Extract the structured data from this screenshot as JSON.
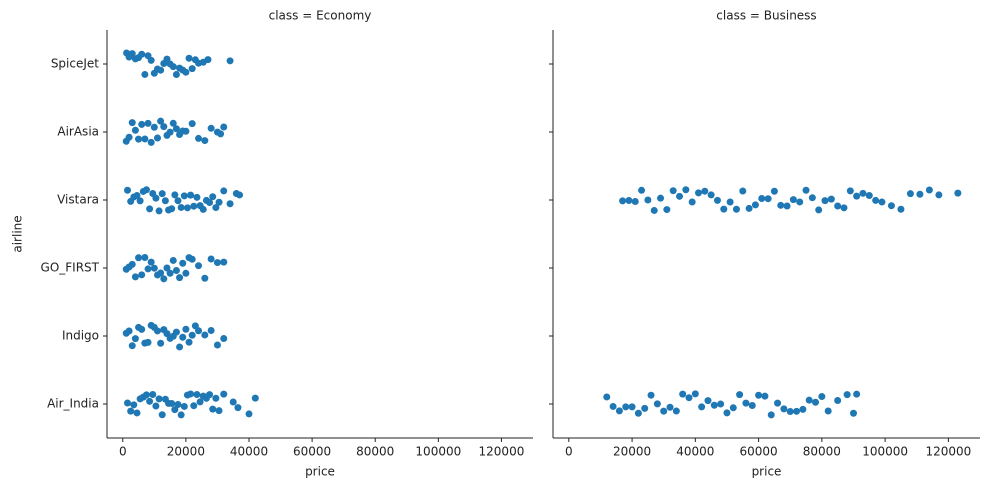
{
  "chart_data": [
    {
      "type": "strip",
      "title": "class = Economy",
      "xlabel": "price",
      "ylabel": "airline",
      "color": "#1f77b4",
      "categories": [
        "SpiceJet",
        "AirAsia",
        "Vistara",
        "GO_FIRST",
        "Indigo",
        "Air_India"
      ],
      "xlim": [
        -5000,
        130000
      ],
      "xticks": [
        0,
        20000,
        40000,
        60000,
        80000,
        100000,
        120000
      ],
      "values": [
        [
          1200,
          2000,
          3000,
          4000,
          5000,
          6000,
          7000,
          8000,
          9000,
          10000,
          11000,
          12000,
          13000,
          14000,
          15000,
          16000,
          17000,
          18000,
          19000,
          20000,
          21000,
          22000,
          23000,
          24000,
          25500,
          27000,
          34000
        ],
        [
          1100,
          2000,
          3000,
          4000,
          5000,
          6000,
          7000,
          8000,
          9000,
          10000,
          11000,
          12000,
          13000,
          14000,
          15000,
          16000,
          17000,
          18000,
          19000,
          20000,
          22000,
          24000,
          26000,
          28000,
          30000,
          31000,
          32000
        ],
        [
          1500,
          2500,
          3500,
          4500,
          5500,
          6500,
          7500,
          8500,
          9500,
          10500,
          11500,
          12500,
          13500,
          14500,
          15500,
          16500,
          17500,
          18500,
          19500,
          20500,
          21500,
          22500,
          23500,
          24500,
          25500,
          26500,
          27500,
          28500,
          29500,
          30500,
          32000,
          34000,
          36000,
          37000
        ],
        [
          1100,
          2000,
          3000,
          4000,
          5000,
          6000,
          7000,
          8000,
          9000,
          10000,
          11000,
          12000,
          13000,
          14000,
          15000,
          16000,
          17000,
          18000,
          19000,
          20000,
          21000,
          22000,
          24000,
          26000,
          28000,
          30000,
          32000
        ],
        [
          1100,
          2000,
          3000,
          4000,
          5000,
          6000,
          7000,
          8000,
          9000,
          10000,
          11000,
          12000,
          13000,
          14000,
          15000,
          16000,
          17000,
          18000,
          19000,
          20000,
          21000,
          22000,
          23000,
          24000,
          26000,
          28000,
          30000,
          32000
        ],
        [
          1500,
          2500,
          3500,
          4500,
          5500,
          6500,
          7500,
          8500,
          9500,
          10500,
          11500,
          12500,
          13500,
          14500,
          15500,
          16500,
          17500,
          18500,
          19500,
          20500,
          21500,
          22500,
          23500,
          24500,
          25500,
          26500,
          27500,
          28500,
          29500,
          30500,
          32000,
          35000,
          36500,
          40000,
          42000
        ]
      ]
    },
    {
      "type": "strip",
      "title": "class = Business",
      "xlabel": "price",
      "color": "#1f77b4",
      "xlim": [
        -5000,
        130000
      ],
      "xticks": [
        0,
        20000,
        40000,
        60000,
        80000,
        100000,
        120000
      ],
      "values": [
        [],
        [],
        [
          17000,
          19000,
          21000,
          23000,
          25000,
          27000,
          29000,
          31000,
          33000,
          35000,
          37000,
          39000,
          41000,
          43000,
          45000,
          47000,
          49000,
          51000,
          53000,
          55000,
          57000,
          59000,
          61000,
          63000,
          65000,
          67000,
          69000,
          71000,
          73000,
          75000,
          77000,
          79000,
          81000,
          83000,
          85000,
          87000,
          89000,
          91000,
          93000,
          95000,
          97000,
          99000,
          102000,
          105000,
          108000,
          111000,
          114000,
          117000,
          123000
        ],
        [],
        [],
        [
          12000,
          14000,
          16000,
          18000,
          20000,
          22000,
          24000,
          26000,
          28000,
          30000,
          32000,
          34000,
          36000,
          38000,
          40000,
          42000,
          44000,
          46000,
          48000,
          50000,
          52000,
          54000,
          56000,
          58000,
          60000,
          62000,
          64000,
          66000,
          68000,
          70000,
          72000,
          74000,
          76000,
          78000,
          80000,
          82000,
          85000,
          88000,
          90000,
          91000
        ]
      ]
    }
  ]
}
